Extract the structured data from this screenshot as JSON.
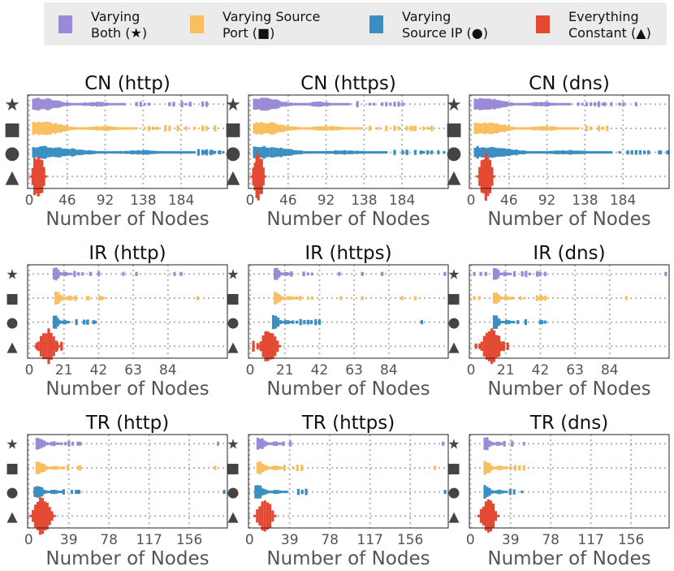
{
  "legend": [
    {
      "line1": "Varying",
      "line2": "Both (★)",
      "color": "#9b8bd6"
    },
    {
      "line1": "Varying Source",
      "line2": "Port (■)",
      "color": "#f9bf5f"
    },
    {
      "line1": "Varying",
      "line2": "Source IP (●)",
      "color": "#3a8ec2"
    },
    {
      "line1": "Everything",
      "line2": "Constant (▲)",
      "color": "#e44a33"
    }
  ],
  "row_markers": [
    {
      "glyph": "★",
      "name": "star-icon"
    },
    {
      "glyph": "■",
      "name": "square-icon"
    },
    {
      "glyph": "●",
      "name": "circle-icon"
    },
    {
      "glyph": "▲",
      "name": "triangle-icon"
    }
  ],
  "chart_data": [
    {
      "type": "scatter",
      "title": "CN (http)",
      "xlabel": "Number of Nodes",
      "xticks": [
        0,
        46,
        92,
        138,
        184
      ],
      "xlim": [
        -2,
        240
      ],
      "series": [
        {
          "name": "Varying Both",
          "core": [
            5,
            115
          ],
          "tail": [
            130,
            215
          ],
          "outliers": [
            170,
            195,
            210
          ],
          "width": 1.0
        },
        {
          "name": "Varying Source Port",
          "core": [
            5,
            130
          ],
          "tail": [
            140,
            230
          ],
          "outliers": [],
          "width": 1.0
        },
        {
          "name": "Varying Source IP",
          "core": [
            5,
            200
          ],
          "tail": [
            205,
            235
          ],
          "outliers": [
            213,
            222,
            231
          ],
          "width": 0.9
        },
        {
          "name": "Everything Constant",
          "core": [
            2,
            20
          ],
          "tail": [],
          "outliers": [],
          "width": 2.0
        }
      ]
    },
    {
      "type": "scatter",
      "title": "CN (https)",
      "xlabel": "Number of Nodes",
      "xticks": [
        0,
        46,
        92,
        138,
        184
      ],
      "xlim": [
        -2,
        240
      ],
      "series": [
        {
          "name": "Varying Both",
          "core": [
            5,
            120
          ],
          "tail": [
            130,
            190
          ],
          "outliers": [],
          "width": 1.0
        },
        {
          "name": "Varying Source Port",
          "core": [
            5,
            135
          ],
          "tail": [
            145,
            220
          ],
          "outliers": [
            180,
            198
          ],
          "width": 1.0
        },
        {
          "name": "Varying Source IP",
          "core": [
            5,
            165
          ],
          "tail": [
            175,
            235
          ],
          "outliers": [
            190,
            207,
            215,
            228
          ],
          "width": 0.9
        },
        {
          "name": "Everything Constant",
          "core": [
            2,
            18
          ],
          "tail": [],
          "outliers": [],
          "width": 2.0
        }
      ]
    },
    {
      "type": "scatter",
      "title": "CN (dns)",
      "xlabel": "Number of Nodes",
      "xticks": [
        0,
        46,
        92,
        138,
        184
      ],
      "xlim": [
        -2,
        240
      ],
      "series": [
        {
          "name": "Varying Both",
          "core": [
            5,
            120
          ],
          "tail": [
            130,
            180
          ],
          "outliers": [
            140,
            150,
            162,
            170,
            185,
            200
          ],
          "width": 1.0
        },
        {
          "name": "Varying Source Port",
          "core": [
            5,
            130
          ],
          "tail": [
            140,
            175
          ],
          "outliers": [],
          "width": 1.0
        },
        {
          "name": "Varying Source IP",
          "core": [
            5,
            170
          ],
          "tail": [
            180,
            240
          ],
          "outliers": [
            190,
            200,
            215,
            228,
            238
          ],
          "width": 0.9
        },
        {
          "name": "Everything Constant",
          "core": [
            8,
            28
          ],
          "tail": [],
          "outliers": [],
          "width": 2.0
        }
      ]
    },
    {
      "type": "scatter",
      "title": "IR (http)",
      "xlabel": "Number of Nodes",
      "xticks": [
        0,
        21,
        42,
        63,
        84
      ],
      "xlim": [
        -1,
        120
      ],
      "series": [
        {
          "name": "Varying Both",
          "core": [
            15,
            25
          ],
          "tail": [
            25,
            47
          ],
          "outliers": [
            37,
            57,
            65,
            88,
            92
          ],
          "width": 1.0
        },
        {
          "name": "Varying Source Port",
          "core": [
            16,
            28
          ],
          "tail": [
            28,
            45
          ],
          "outliers": [
            35,
            36,
            44,
            102
          ],
          "width": 1.0
        },
        {
          "name": "Varying Source IP",
          "core": [
            15,
            24
          ],
          "tail": [
            24,
            40
          ],
          "outliers": [
            35,
            39
          ],
          "width": 1.0
        },
        {
          "name": "Everything Constant",
          "core": [
            4,
            18
          ],
          "tail": [
            2,
            22
          ],
          "outliers": [],
          "width": 1.4
        }
      ]
    },
    {
      "type": "scatter",
      "title": "IR (https)",
      "xlabel": "Number of Nodes",
      "xticks": [
        0,
        21,
        42,
        63,
        84
      ],
      "xlim": [
        -1,
        120
      ],
      "series": [
        {
          "name": "Varying Both",
          "core": [
            15,
            25
          ],
          "tail": [
            25,
            40
          ],
          "outliers": [
            54,
            68,
            80,
            118
          ],
          "width": 1.0
        },
        {
          "name": "Varying Source Port",
          "core": [
            15,
            28
          ],
          "tail": [
            28,
            40
          ],
          "outliers": [
            55,
            68,
            92,
            100
          ],
          "width": 1.0
        },
        {
          "name": "Varying Source IP",
          "core": [
            14,
            26
          ],
          "tail": [
            26,
            42
          ],
          "outliers": [
            35,
            37,
            104
          ],
          "width": 1.0
        },
        {
          "name": "Everything Constant",
          "core": [
            5,
            18
          ],
          "tail": [
            2,
            20
          ],
          "outliers": [],
          "width": 1.4
        }
      ]
    },
    {
      "type": "scatter",
      "title": "IR (dns)",
      "xlabel": "Number of Nodes",
      "xticks": [
        0,
        21,
        42,
        63,
        84
      ],
      "xlim": [
        -1,
        120
      ],
      "series": [
        {
          "name": "Varying Both",
          "core": [
            14,
            24
          ],
          "tail": [
            24,
            45
          ],
          "outliers": [
            2,
            6,
            9,
            40,
            42,
            118
          ],
          "width": 1.0
        },
        {
          "name": "Varying Source Port",
          "core": [
            14,
            25
          ],
          "tail": [
            25,
            45
          ],
          "outliers": [
            2,
            5,
            42,
            43,
            94
          ],
          "width": 1.0
        },
        {
          "name": "Varying Source IP",
          "core": [
            14,
            26
          ],
          "tail": [
            26,
            45
          ],
          "outliers": [
            42,
            43
          ],
          "width": 1.0
        },
        {
          "name": "Everything Constant",
          "core": [
            5,
            20
          ],
          "tail": [
            3,
            27
          ],
          "outliers": [],
          "width": 1.4
        }
      ]
    },
    {
      "type": "scatter",
      "title": "TR (http)",
      "xlabel": "Number of Nodes",
      "xticks": [
        0,
        39,
        78,
        117,
        156
      ],
      "xlim": [
        -1,
        193
      ],
      "series": [
        {
          "name": "Varying Both",
          "core": [
            8,
            32
          ],
          "tail": [
            32,
            50
          ],
          "outliers": [
            48,
            50,
            184
          ],
          "width": 1.0
        },
        {
          "name": "Varying Source Port",
          "core": [
            8,
            34
          ],
          "tail": [
            34,
            50
          ],
          "outliers": [
            48,
            50,
            181
          ],
          "width": 1.0
        },
        {
          "name": "Varying Source IP",
          "core": [
            6,
            34
          ],
          "tail": [
            34,
            50
          ],
          "outliers": [
            48,
            49,
            190
          ],
          "width": 1.0
        },
        {
          "name": "Everything Constant",
          "core": [
            2,
            25
          ],
          "tail": [],
          "outliers": [],
          "width": 1.5
        }
      ]
    },
    {
      "type": "scatter",
      "title": "TR (https)",
      "xlabel": "Number of Nodes",
      "xticks": [
        0,
        39,
        78,
        117,
        156
      ],
      "xlim": [
        -1,
        193
      ],
      "series": [
        {
          "name": "Varying Both",
          "core": [
            8,
            33
          ],
          "tail": [
            33,
            42
          ],
          "outliers": [
            188
          ],
          "width": 1.0
        },
        {
          "name": "Varying Source Port",
          "core": [
            8,
            34
          ],
          "tail": [
            34,
            55
          ],
          "outliers": [
            180
          ],
          "width": 1.0
        },
        {
          "name": "Varying Source IP",
          "core": [
            6,
            36
          ],
          "tail": [
            36,
            55
          ],
          "outliers": [
            190
          ],
          "width": 1.0
        },
        {
          "name": "Everything Constant",
          "core": [
            5,
            25
          ],
          "tail": [],
          "outliers": [],
          "width": 1.4
        }
      ]
    },
    {
      "type": "scatter",
      "title": "TR (dns)",
      "xlabel": "Number of Nodes",
      "xticks": [
        0,
        39,
        78,
        117,
        156
      ],
      "xlim": [
        -1,
        193
      ],
      "series": [
        {
          "name": "Varying Both",
          "core": [
            14,
            33
          ],
          "tail": [
            33,
            52
          ],
          "outliers": [],
          "width": 1.0
        },
        {
          "name": "Varying Source Port",
          "core": [
            14,
            35
          ],
          "tail": [
            35,
            52
          ],
          "outliers": [],
          "width": 1.0
        },
        {
          "name": "Varying Source IP",
          "core": [
            14,
            35
          ],
          "tail": [
            35,
            50
          ],
          "outliers": [],
          "width": 1.0
        },
        {
          "name": "Everything Constant",
          "core": [
            8,
            27
          ],
          "tail": [],
          "outliers": [],
          "width": 1.4
        }
      ]
    }
  ]
}
